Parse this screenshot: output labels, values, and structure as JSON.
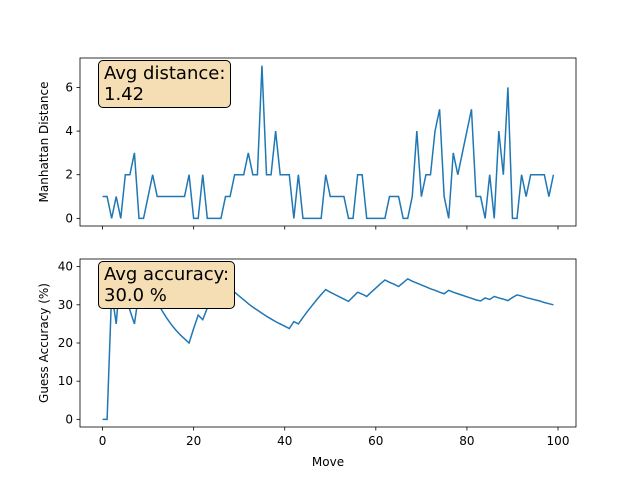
{
  "chart_data": [
    {
      "type": "line",
      "ylabel": "Manhattan Distance",
      "annotation": "Avg distance:\n1.42",
      "color": "#1f77b4",
      "x": [
        0,
        1,
        2,
        3,
        4,
        5,
        6,
        7,
        8,
        9,
        10,
        11,
        12,
        13,
        14,
        15,
        16,
        17,
        18,
        19,
        20,
        21,
        22,
        23,
        24,
        25,
        26,
        27,
        28,
        29,
        30,
        31,
        32,
        33,
        34,
        35,
        36,
        37,
        38,
        39,
        40,
        41,
        42,
        43,
        44,
        45,
        46,
        47,
        48,
        49,
        50,
        51,
        52,
        53,
        54,
        55,
        56,
        57,
        58,
        59,
        60,
        61,
        62,
        63,
        64,
        65,
        66,
        67,
        68,
        69,
        70,
        71,
        72,
        73,
        74,
        75,
        76,
        77,
        78,
        79,
        80,
        81,
        82,
        83,
        84,
        85,
        86,
        87,
        88,
        89,
        90,
        91,
        92,
        93,
        94,
        95,
        96,
        97,
        98,
        99
      ],
      "values": [
        1,
        1,
        0,
        1,
        0,
        2,
        2,
        3,
        0,
        0,
        1,
        2,
        1,
        1,
        1,
        1,
        1,
        1,
        1,
        2,
        0,
        0,
        2,
        0,
        0,
        0,
        0,
        1,
        1,
        2,
        2,
        2,
        3,
        2,
        2,
        7,
        2,
        2,
        4,
        2,
        2,
        2,
        0,
        2,
        0,
        0,
        0,
        0,
        0,
        2,
        1,
        1,
        1,
        1,
        0,
        0,
        2,
        2,
        0,
        0,
        0,
        0,
        0,
        1,
        1,
        1,
        0,
        0,
        1,
        4,
        1,
        2,
        2,
        4,
        5,
        1,
        0,
        3,
        2,
        3,
        4,
        5,
        1,
        1,
        0,
        2,
        0,
        4,
        2,
        6,
        0,
        0,
        2,
        1,
        2,
        2,
        2,
        2,
        1,
        2
      ],
      "xlim": [
        -4.95,
        103.95
      ],
      "xticks": [
        0,
        20,
        40,
        60,
        80,
        100
      ],
      "show_xtick_labels": false,
      "ylim": [
        -0.35,
        7.35
      ],
      "yticks": [
        0,
        2,
        4,
        6
      ]
    },
    {
      "type": "line",
      "ylabel": "Guess Accuracy (%)",
      "xlabel": "Move",
      "annotation": "Avg accuracy:\n30.0 %",
      "color": "#1f77b4",
      "x": [
        0,
        1,
        2,
        3,
        4,
        5,
        6,
        7,
        8,
        9,
        10,
        11,
        12,
        13,
        14,
        15,
        16,
        17,
        18,
        19,
        20,
        21,
        22,
        23,
        24,
        25,
        26,
        27,
        28,
        29,
        30,
        31,
        32,
        33,
        34,
        35,
        36,
        37,
        38,
        39,
        40,
        41,
        42,
        43,
        44,
        45,
        46,
        47,
        48,
        49,
        50,
        51,
        52,
        53,
        54,
        55,
        56,
        57,
        58,
        59,
        60,
        61,
        62,
        63,
        64,
        65,
        66,
        67,
        68,
        69,
        70,
        71,
        72,
        73,
        74,
        75,
        76,
        77,
        78,
        79,
        80,
        81,
        82,
        83,
        84,
        85,
        86,
        87,
        88,
        89,
        90,
        91,
        92,
        93,
        94,
        95,
        96,
        97,
        98,
        99
      ],
      "values": [
        0,
        0,
        33.3,
        25,
        40,
        33.3,
        28.6,
        25,
        33.3,
        40,
        36.4,
        33.3,
        30.8,
        28.6,
        26.7,
        25,
        23.5,
        22.2,
        21.1,
        20,
        23.8,
        27.3,
        26.1,
        29.2,
        32,
        34.6,
        37,
        35.7,
        34.5,
        33.3,
        32.3,
        31.3,
        30.3,
        29.4,
        28.6,
        27.8,
        27,
        26.3,
        25.6,
        25,
        24.4,
        23.8,
        25.6,
        25,
        26.7,
        28.3,
        29.8,
        31.3,
        32.7,
        34,
        33.3,
        32.7,
        32.1,
        31.5,
        30.9,
        32.1,
        33.3,
        32.8,
        32.2,
        33.3,
        34.4,
        35.5,
        36.5,
        35.9,
        35.4,
        34.8,
        35.8,
        36.8,
        36.2,
        35.7,
        35.2,
        34.7,
        34.2,
        33.8,
        33.3,
        32.9,
        33.8,
        33.3,
        32.9,
        32.5,
        32.1,
        31.7,
        31.3,
        31,
        31.8,
        31.4,
        32.2,
        31.8,
        31.5,
        31.1,
        31.9,
        32.6,
        32.3,
        31.9,
        31.6,
        31.3,
        31,
        30.6,
        30.3,
        30
      ],
      "xlim": [
        -4.95,
        103.95
      ],
      "xticks": [
        0,
        20,
        40,
        60,
        80,
        100
      ],
      "show_xtick_labels": true,
      "ylim": [
        -2,
        42
      ],
      "yticks": [
        0,
        10,
        20,
        30,
        40
      ]
    }
  ]
}
